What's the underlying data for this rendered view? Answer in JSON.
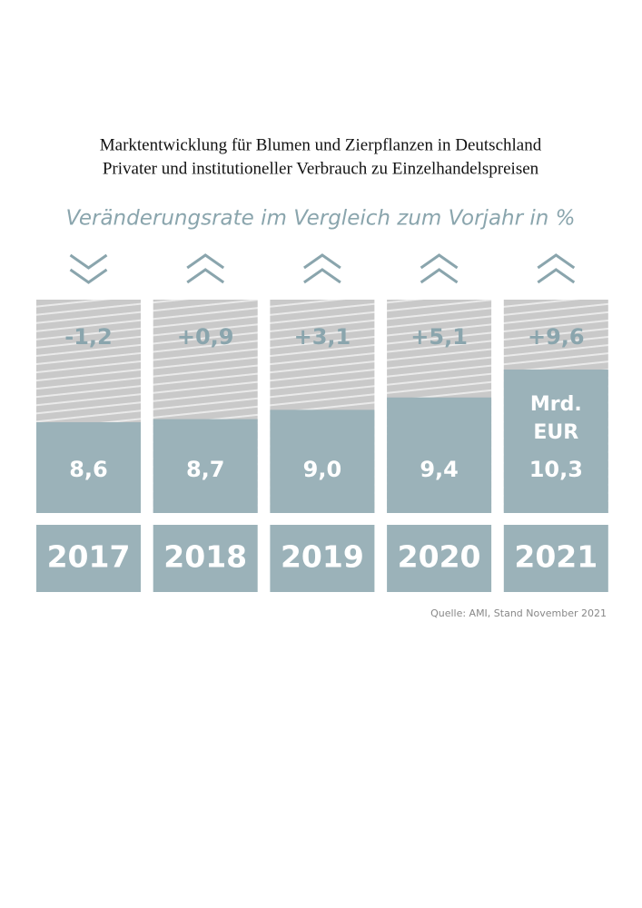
{
  "chart_data": {
    "type": "bar",
    "title": "Marktentwicklung für Blumen und Zierpflanzen in Deutschland",
    "subtitle": "Privater und institutioneller Verbrauch zu Einzelhandelspreisen",
    "change_title": "Veränderungsrate im Vergleich zum Vorjahr in %",
    "categories": [
      "2017",
      "2018",
      "2019",
      "2020",
      "2021"
    ],
    "values": [
      8.6,
      8.7,
      9.0,
      9.4,
      10.3
    ],
    "value_labels": [
      "8,6",
      "8,7",
      "9,0",
      "9,4",
      "10,3"
    ],
    "unit": [
      "Mrd.",
      "EUR"
    ],
    "changes": [
      -1.2,
      0.9,
      3.1,
      5.1,
      9.6
    ],
    "change_labels": [
      "-1,2",
      "+0,9",
      "+3,1",
      "+5,1",
      "+9,6"
    ],
    "color": "#9bb2b9",
    "source": "Quelle: AMI, Stand November 2021"
  }
}
